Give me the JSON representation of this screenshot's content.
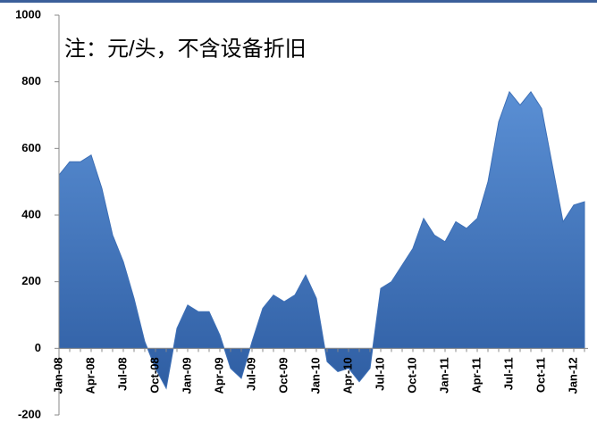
{
  "chart_data": {
    "type": "area",
    "annotation": "注：元/头，不含设备折旧",
    "categories": [
      "Jan-08",
      null,
      null,
      "Apr-08",
      null,
      null,
      "Jul-08",
      null,
      null,
      "Oct-08",
      null,
      null,
      "Jan-09",
      null,
      null,
      "Apr-09",
      null,
      null,
      "Jul-09",
      null,
      null,
      "Oct-09",
      null,
      null,
      "Jan-10",
      null,
      null,
      "Apr-10",
      null,
      null,
      "Jul-10",
      null,
      null,
      "Oct-10",
      null,
      null,
      "Jan-11",
      null,
      null,
      "Apr-11",
      null,
      null,
      "Jul-11",
      null,
      null,
      "Oct-11",
      null,
      null,
      "Jan-12",
      null
    ],
    "values": [
      520,
      560,
      560,
      580,
      480,
      340,
      260,
      150,
      20,
      -60,
      -120,
      60,
      130,
      110,
      110,
      40,
      -60,
      -90,
      20,
      120,
      160,
      140,
      160,
      220,
      150,
      -40,
      -70,
      -60,
      -100,
      -60,
      180,
      200,
      250,
      300,
      390,
      340,
      320,
      380,
      360,
      390,
      500,
      680,
      770,
      730,
      770,
      720,
      550,
      380,
      430,
      440
    ],
    "color": "#3d6fb6",
    "ylim": [
      -200,
      1000
    ],
    "yticks": [
      -200,
      0,
      200,
      400,
      600,
      800,
      1000
    ]
  }
}
